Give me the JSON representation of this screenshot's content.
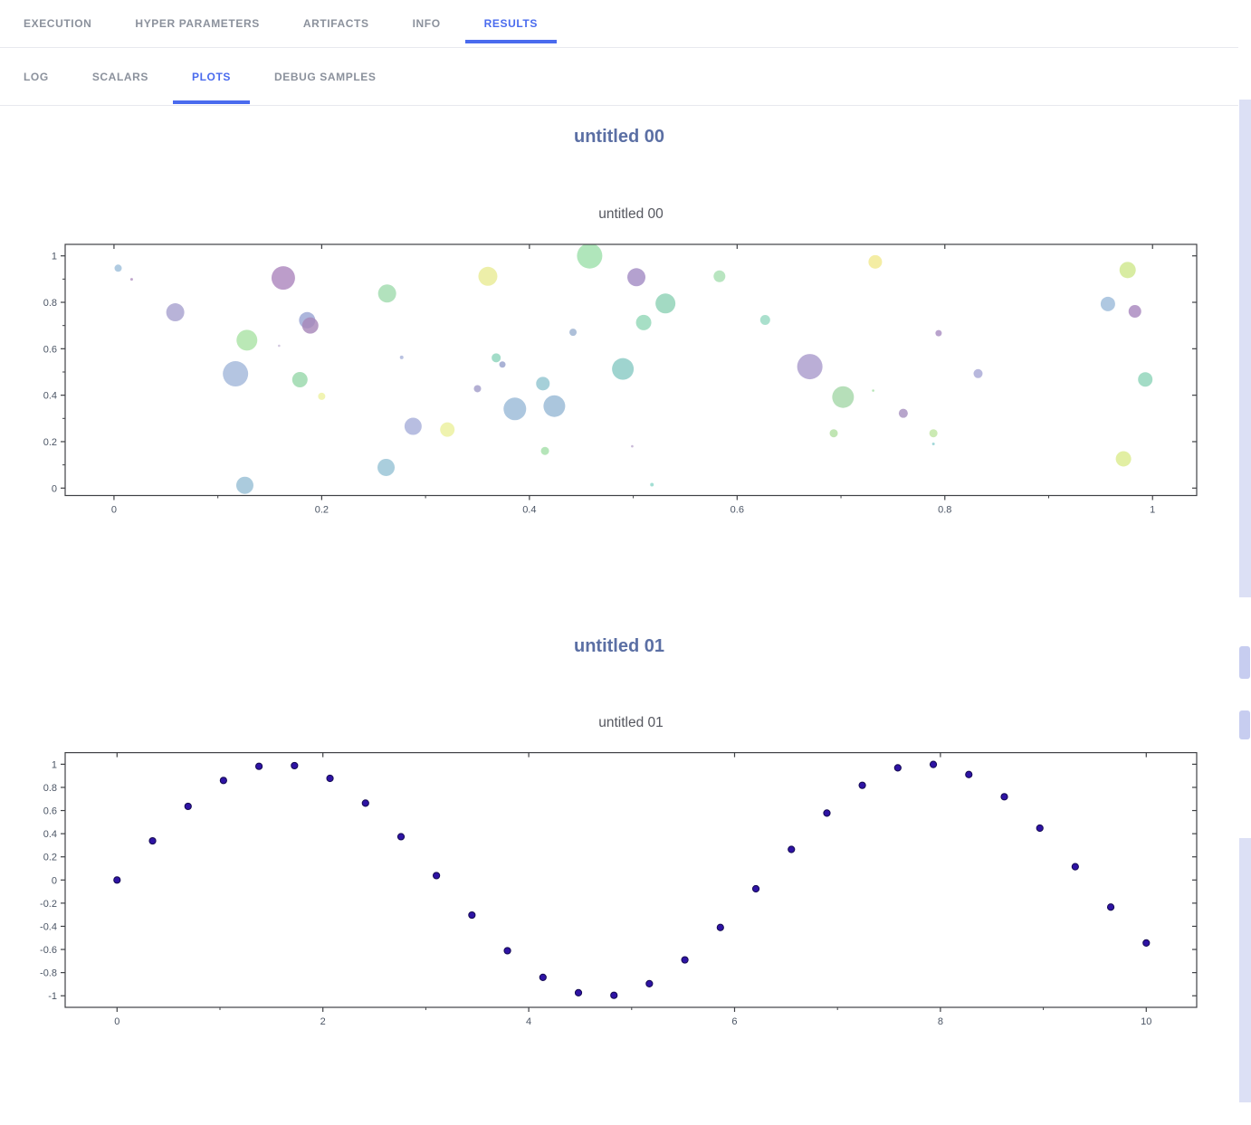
{
  "app": {
    "accent": "#4a6bee"
  },
  "tabs": [
    {
      "label": "EXECUTION",
      "active": false
    },
    {
      "label": "HYPER PARAMETERS",
      "active": false
    },
    {
      "label": "ARTIFACTS",
      "active": false
    },
    {
      "label": "INFO",
      "active": false
    },
    {
      "label": "RESULTS",
      "active": true
    }
  ],
  "subtabs": [
    {
      "label": "LOG",
      "active": false
    },
    {
      "label": "SCALARS",
      "active": false
    },
    {
      "label": "PLOTS",
      "active": true
    },
    {
      "label": "DEBUG SAMPLES",
      "active": false
    }
  ],
  "sections": [
    {
      "heading": "untitled 00"
    },
    {
      "heading": "untitled 01"
    }
  ],
  "chart_data": [
    {
      "type": "scatter",
      "variant": "bubble",
      "title": "untitled 00",
      "xlabel": "",
      "ylabel": "",
      "xlim": [
        -0.047,
        1.0425
      ],
      "ylim": [
        -0.032,
        1.0495
      ],
      "xticks": {
        "values": [
          0,
          0.2,
          0.4,
          0.6,
          0.8,
          1
        ],
        "labels": [
          "0",
          "0.2",
          "0.4",
          "0.6",
          "0.8",
          "1"
        ]
      },
      "yticks": {
        "values": [
          0,
          0.2,
          0.4,
          0.6,
          0.8,
          1
        ],
        "labels": [
          "0",
          "0.2",
          "0.4",
          "0.6",
          "0.8",
          "1"
        ]
      },
      "minor_xticks": [
        0.1,
        0.3,
        0.5,
        0.7,
        0.9
      ],
      "minor_yticks": [
        0.1,
        0.3,
        0.5,
        0.7,
        0.9
      ],
      "grid": false,
      "legend": false,
      "point_format": [
        "x",
        "y",
        "radius_px",
        "color"
      ],
      "points": [
        [
          0.004,
          0.947,
          4,
          "#9fc0da"
        ],
        [
          0.017,
          0.899,
          1.5,
          "#b394c2"
        ],
        [
          0.059,
          0.757,
          10,
          "#a8a2cf"
        ],
        [
          0.163,
          0.905,
          13,
          "#ad87be"
        ],
        [
          0.128,
          0.637,
          11.5,
          "#abe3a6"
        ],
        [
          0.186,
          0.723,
          9,
          "#9ba6d4"
        ],
        [
          0.189,
          0.7,
          9,
          "#a787ba"
        ],
        [
          0.159,
          0.613,
          1.3,
          "#c9bcd8"
        ],
        [
          0.117,
          0.492,
          14,
          "#a3b8da"
        ],
        [
          0.179,
          0.467,
          8.5,
          "#98d8ab"
        ],
        [
          0.2,
          0.395,
          4,
          "#eef2a2"
        ],
        [
          0.126,
          0.012,
          9.5,
          "#98c0d6"
        ],
        [
          0.263,
          0.838,
          10,
          "#a1dcae"
        ],
        [
          0.277,
          0.563,
          2,
          "#a9b4da"
        ],
        [
          0.288,
          0.266,
          9.5,
          "#a8b0da"
        ],
        [
          0.321,
          0.252,
          8,
          "#ecf09d"
        ],
        [
          0.262,
          0.089,
          9.5,
          "#97c3d6"
        ],
        [
          0.36,
          0.912,
          10.5,
          "#e9eb96"
        ],
        [
          0.368,
          0.561,
          5,
          "#8ed4bc"
        ],
        [
          0.374,
          0.532,
          3.5,
          "#97a1cc"
        ],
        [
          0.35,
          0.428,
          4,
          "#a29ec9"
        ],
        [
          0.386,
          0.341,
          12.5,
          "#9bbbd8"
        ],
        [
          0.413,
          0.45,
          7.5,
          "#93c6d1"
        ],
        [
          0.415,
          0.16,
          4.5,
          "#a5dfa9"
        ],
        [
          0.424,
          0.353,
          12,
          "#98b9d6"
        ],
        [
          0.442,
          0.671,
          4,
          "#9cb2d1"
        ],
        [
          0.458,
          1.0,
          14,
          "#9fe0ac"
        ],
        [
          0.49,
          0.513,
          12,
          "#8acbc5"
        ],
        [
          0.499,
          0.18,
          1.3,
          "#bca8ce"
        ],
        [
          0.503,
          0.908,
          10,
          "#a48cc4"
        ],
        [
          0.51,
          0.713,
          8.5,
          "#94d8b8"
        ],
        [
          0.518,
          0.015,
          2,
          "#8fd8ca"
        ],
        [
          0.531,
          0.795,
          11,
          "#8fd2b6"
        ],
        [
          0.583,
          0.912,
          6.5,
          "#a8dfb2"
        ],
        [
          0.627,
          0.724,
          5.5,
          "#97d9c2"
        ],
        [
          0.67,
          0.523,
          14,
          "#ab9ccd"
        ],
        [
          0.693,
          0.236,
          4.5,
          "#b2dfa2"
        ],
        [
          0.702,
          0.392,
          12,
          "#a6d8aa"
        ],
        [
          0.731,
          0.42,
          1.3,
          "#a8dfa7"
        ],
        [
          0.733,
          0.974,
          7.5,
          "#f2e990"
        ],
        [
          0.76,
          0.322,
          5,
          "#a791bf"
        ],
        [
          0.789,
          0.236,
          4.5,
          "#bfe5a2"
        ],
        [
          0.789,
          0.19,
          1.5,
          "#8ed0d1"
        ],
        [
          0.794,
          0.667,
          3.5,
          "#a98fc2"
        ],
        [
          0.832,
          0.493,
          5,
          "#a8a8d6"
        ],
        [
          0.957,
          0.793,
          8,
          "#9dbcda"
        ],
        [
          0.972,
          0.126,
          8.5,
          "#dcec8f"
        ],
        [
          0.976,
          0.939,
          9,
          "#cfe88d"
        ],
        [
          0.983,
          0.761,
          7,
          "#a888be"
        ],
        [
          0.993,
          0.468,
          8,
          "#8fd4ba"
        ]
      ]
    },
    {
      "type": "scatter",
      "variant": "markers",
      "title": "untitled 01",
      "xlabel": "",
      "ylabel": "",
      "marker": {
        "color": "#2e13a4",
        "edge": "#140a52",
        "radius_px": 3.6
      },
      "xlim": [
        -0.504,
        10.49
      ],
      "ylim": [
        -1.1,
        1.1
      ],
      "xticks": {
        "values": [
          0,
          2,
          4,
          6,
          8,
          10
        ],
        "labels": [
          "0",
          "2",
          "4",
          "6",
          "8",
          "10"
        ]
      },
      "yticks": {
        "values": [
          -1,
          -0.8,
          -0.6,
          -0.4,
          -0.2,
          0,
          0.2,
          0.4,
          0.6,
          0.8,
          1
        ],
        "labels": [
          "-1",
          "-0.8",
          "-0.6",
          "-0.4",
          "-0.2",
          "0",
          "0.2",
          "0.4",
          "0.6",
          "0.8",
          "1"
        ]
      },
      "minor_xticks": [
        1,
        3,
        5,
        7,
        9
      ],
      "grid": false,
      "legend": false,
      "point_format": [
        "x",
        "y"
      ],
      "points": [
        [
          0.0,
          0.0
        ],
        [
          0.345,
          0.338
        ],
        [
          0.69,
          0.636
        ],
        [
          1.034,
          0.86
        ],
        [
          1.379,
          0.982
        ],
        [
          1.724,
          0.988
        ],
        [
          2.069,
          0.878
        ],
        [
          2.414,
          0.664
        ],
        [
          2.759,
          0.374
        ],
        [
          3.103,
          0.038
        ],
        [
          3.448,
          -0.303
        ],
        [
          3.793,
          -0.611
        ],
        [
          4.138,
          -0.841
        ],
        [
          4.483,
          -0.974
        ],
        [
          4.828,
          -0.996
        ],
        [
          5.172,
          -0.896
        ],
        [
          5.517,
          -0.69
        ],
        [
          5.862,
          -0.41
        ],
        [
          6.207,
          -0.076
        ],
        [
          6.552,
          0.264
        ],
        [
          6.897,
          0.578
        ],
        [
          7.241,
          0.818
        ],
        [
          7.586,
          0.969
        ],
        [
          7.931,
          0.998
        ],
        [
          8.276,
          0.911
        ],
        [
          8.621,
          0.719
        ],
        [
          8.966,
          0.448
        ],
        [
          9.31,
          0.115
        ],
        [
          9.655,
          -0.234
        ],
        [
          10.0,
          -0.544
        ]
      ]
    }
  ]
}
